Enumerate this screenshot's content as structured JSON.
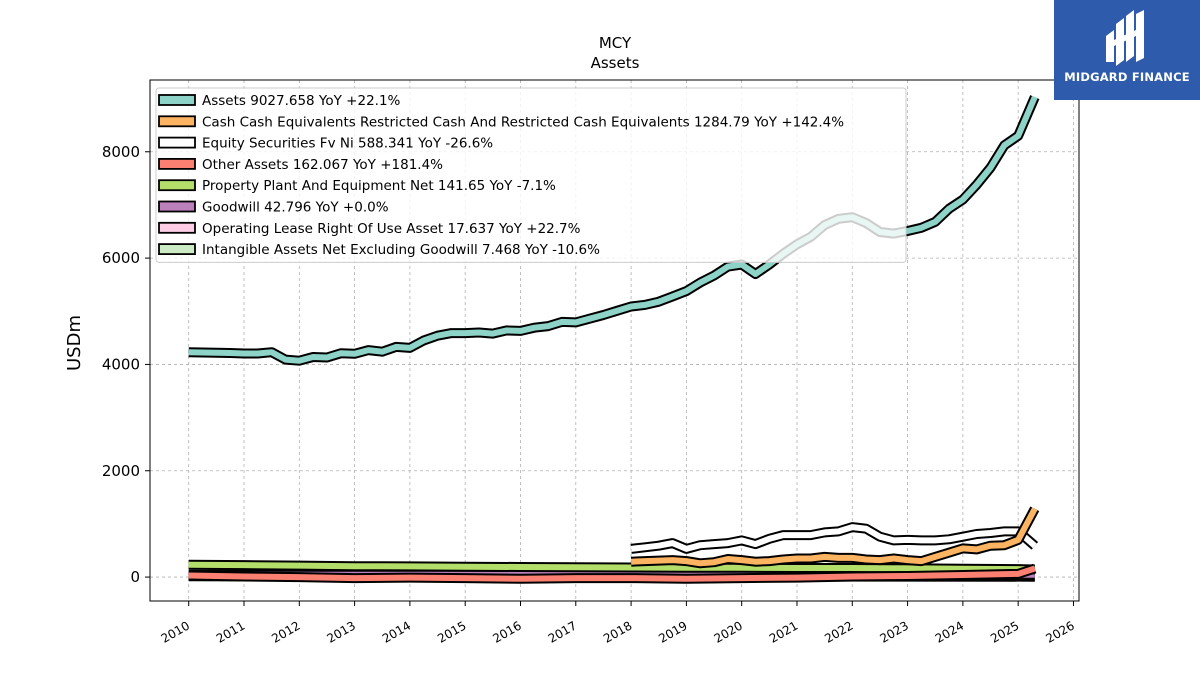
{
  "brand": {
    "name": "MIDGARD FINANCE",
    "bg": "#2e5bab"
  },
  "chart_data": {
    "type": "line",
    "title": "MCY",
    "subtitle": "Assets",
    "xlabel": "",
    "ylabel": "USDm",
    "xlim": [
      2009.3,
      2026.1
    ],
    "ylim": [
      -450,
      9350
    ],
    "x_ticks": [
      "2010",
      "2011",
      "2012",
      "2013",
      "2014",
      "2015",
      "2016",
      "2017",
      "2018",
      "2019",
      "2020",
      "2021",
      "2022",
      "2023",
      "2024",
      "2025",
      "2026"
    ],
    "y_ticks": [
      "0",
      "2000",
      "4000",
      "6000",
      "8000"
    ],
    "grid": true,
    "legend_position": "top-left",
    "series": [
      {
        "name": "Assets",
        "legend": "Assets  9027.658 YoY +22.1%",
        "color": "#8dd3c7",
        "points": [
          [
            2010.0,
            4230
          ],
          [
            2010.25,
            4225
          ],
          [
            2010.5,
            4220
          ],
          [
            2010.75,
            4215
          ],
          [
            2011.0,
            4205
          ],
          [
            2011.25,
            4205
          ],
          [
            2011.5,
            4230
          ],
          [
            2011.75,
            4090
          ],
          [
            2012.0,
            4070
          ],
          [
            2012.25,
            4140
          ],
          [
            2012.5,
            4130
          ],
          [
            2012.75,
            4210
          ],
          [
            2013.0,
            4200
          ],
          [
            2013.25,
            4270
          ],
          [
            2013.5,
            4240
          ],
          [
            2013.75,
            4330
          ],
          [
            2014.0,
            4310
          ],
          [
            2014.25,
            4450
          ],
          [
            2014.5,
            4540
          ],
          [
            2014.75,
            4590
          ],
          [
            2015.0,
            4590
          ],
          [
            2015.25,
            4600
          ],
          [
            2015.5,
            4580
          ],
          [
            2015.75,
            4640
          ],
          [
            2016.0,
            4630
          ],
          [
            2016.25,
            4690
          ],
          [
            2016.5,
            4720
          ],
          [
            2016.75,
            4800
          ],
          [
            2017.0,
            4790
          ],
          [
            2017.25,
            4860
          ],
          [
            2017.5,
            4930
          ],
          [
            2017.75,
            5010
          ],
          [
            2018.0,
            5090
          ],
          [
            2018.25,
            5120
          ],
          [
            2018.5,
            5180
          ],
          [
            2018.75,
            5280
          ],
          [
            2019.0,
            5380
          ],
          [
            2019.25,
            5540
          ],
          [
            2019.5,
            5670
          ],
          [
            2019.75,
            5840
          ],
          [
            2020.0,
            5880
          ],
          [
            2020.25,
            5700
          ],
          [
            2020.5,
            5880
          ],
          [
            2020.75,
            6080
          ],
          [
            2021.0,
            6260
          ],
          [
            2021.25,
            6400
          ],
          [
            2021.5,
            6620
          ],
          [
            2021.75,
            6740
          ],
          [
            2022.0,
            6770
          ],
          [
            2022.25,
            6660
          ],
          [
            2022.5,
            6490
          ],
          [
            2022.75,
            6460
          ],
          [
            2023.0,
            6510
          ],
          [
            2023.25,
            6570
          ],
          [
            2023.5,
            6680
          ],
          [
            2023.75,
            6930
          ],
          [
            2024.0,
            7100
          ],
          [
            2024.25,
            7380
          ],
          [
            2024.5,
            7700
          ],
          [
            2024.75,
            8120
          ],
          [
            2025.0,
            8300
          ],
          [
            2025.3,
            9028
          ]
        ]
      },
      {
        "name": "Cash Cash Equivalents Restricted Cash And Restricted Cash Equivalents",
        "legend": "Cash Cash Equivalents Restricted Cash And Restricted Cash Equivalents  1284.79 YoY +142.4%",
        "color": "#fdb462",
        "points": [
          [
            2018.0,
            290
          ],
          [
            2018.25,
            300
          ],
          [
            2018.5,
            310
          ],
          [
            2018.75,
            320
          ],
          [
            2019.0,
            300
          ],
          [
            2019.25,
            260
          ],
          [
            2019.5,
            280
          ],
          [
            2019.75,
            340
          ],
          [
            2020.0,
            320
          ],
          [
            2020.25,
            290
          ],
          [
            2020.5,
            300
          ],
          [
            2020.75,
            330
          ],
          [
            2021.0,
            350
          ],
          [
            2021.25,
            350
          ],
          [
            2021.5,
            380
          ],
          [
            2021.75,
            360
          ],
          [
            2022.0,
            360
          ],
          [
            2022.25,
            330
          ],
          [
            2022.5,
            320
          ],
          [
            2022.75,
            350
          ],
          [
            2023.0,
            320
          ],
          [
            2023.25,
            300
          ],
          [
            2023.5,
            380
          ],
          [
            2023.75,
            460
          ],
          [
            2024.0,
            540
          ],
          [
            2024.25,
            520
          ],
          [
            2024.5,
            590
          ],
          [
            2024.75,
            600
          ],
          [
            2025.0,
            700
          ],
          [
            2025.3,
            1285
          ]
        ]
      },
      {
        "name": "Equity Securities Fv Ni",
        "legend": "Equity Securities Fv Ni  588.341 YoY -26.6%",
        "color": "#ffffff",
        "points": [
          [
            2018.0,
            530
          ],
          [
            2018.25,
            560
          ],
          [
            2018.5,
            590
          ],
          [
            2018.75,
            640
          ],
          [
            2019.0,
            530
          ],
          [
            2019.25,
            600
          ],
          [
            2019.5,
            620
          ],
          [
            2019.75,
            640
          ],
          [
            2020.0,
            690
          ],
          [
            2020.25,
            620
          ],
          [
            2020.5,
            720
          ],
          [
            2020.75,
            790
          ],
          [
            2021.0,
            790
          ],
          [
            2021.25,
            790
          ],
          [
            2021.5,
            840
          ],
          [
            2021.75,
            860
          ],
          [
            2022.0,
            940
          ],
          [
            2022.25,
            910
          ],
          [
            2022.5,
            760
          ],
          [
            2022.75,
            690
          ],
          [
            2023.0,
            700
          ],
          [
            2023.25,
            690
          ],
          [
            2023.5,
            690
          ],
          [
            2023.75,
            710
          ],
          [
            2024.0,
            760
          ],
          [
            2024.25,
            810
          ],
          [
            2024.5,
            830
          ],
          [
            2024.75,
            860
          ],
          [
            2025.0,
            860
          ],
          [
            2025.3,
            588
          ]
        ]
      },
      {
        "name": "Other Assets",
        "legend": "Other Assets  162.067 YoY +181.4%",
        "color": "#fb8072",
        "points": [
          [
            2010.0,
            30
          ],
          [
            2011.0,
            10
          ],
          [
            2012.0,
            0
          ],
          [
            2013.0,
            -20
          ],
          [
            2014.0,
            -10
          ],
          [
            2015.0,
            -20
          ],
          [
            2016.0,
            -30
          ],
          [
            2017.0,
            -20
          ],
          [
            2018.0,
            -20
          ],
          [
            2019.0,
            -30
          ],
          [
            2020.0,
            -20
          ],
          [
            2021.0,
            -10
          ],
          [
            2022.0,
            10
          ],
          [
            2023.0,
            20
          ],
          [
            2024.0,
            40
          ],
          [
            2025.0,
            60
          ],
          [
            2025.3,
            162
          ]
        ]
      },
      {
        "name": "Property Plant And Equipment Net",
        "legend": "Property Plant And Equipment Net  141.65 YoY -7.1%",
        "color": "#b3de69",
        "points": [
          [
            2010.0,
            230
          ],
          [
            2011.0,
            225
          ],
          [
            2012.0,
            215
          ],
          [
            2013.0,
            205
          ],
          [
            2014.0,
            200
          ],
          [
            2015.0,
            195
          ],
          [
            2016.0,
            190
          ],
          [
            2017.0,
            185
          ],
          [
            2018.0,
            180
          ],
          [
            2019.0,
            175
          ],
          [
            2020.0,
            175
          ],
          [
            2021.0,
            170
          ],
          [
            2022.0,
            170
          ],
          [
            2023.0,
            165
          ],
          [
            2024.0,
            155
          ],
          [
            2025.0,
            150
          ],
          [
            2025.3,
            142
          ]
        ]
      },
      {
        "name": "Goodwill",
        "legend": "Goodwill  42.796 YoY +0.0%",
        "color": "#bc80bd",
        "points": [
          [
            2010.0,
            43
          ],
          [
            2015.0,
            43
          ],
          [
            2020.0,
            43
          ],
          [
            2025.3,
            43
          ]
        ]
      },
      {
        "name": "Operating Lease Right Of Use Asset",
        "legend": "Operating Lease Right Of Use Asset  17.637 YoY +22.7%",
        "color": "#fccde5",
        "points": [
          [
            2019.0,
            25
          ],
          [
            2020.0,
            22
          ],
          [
            2021.0,
            20
          ],
          [
            2022.0,
            18
          ],
          [
            2023.0,
            16
          ],
          [
            2024.0,
            15
          ],
          [
            2025.3,
            18
          ]
        ]
      },
      {
        "name": "Intangible Assets Net Excluding Goodwill",
        "legend": "Intangible Assets Net Excluding Goodwill  7.468 YoY -10.6%",
        "color": "#ccebc5",
        "points": [
          [
            2010.0,
            14
          ],
          [
            2015.0,
            12
          ],
          [
            2020.0,
            10
          ],
          [
            2025.3,
            7
          ]
        ]
      }
    ]
  }
}
